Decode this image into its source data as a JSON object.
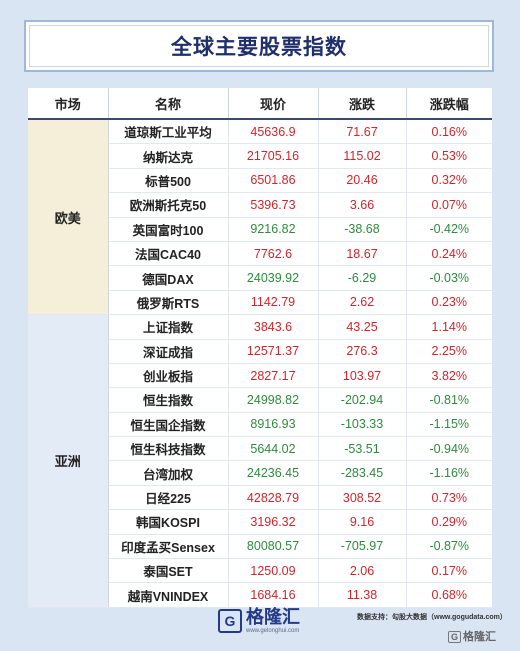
{
  "title": "全球主要股票指数",
  "headers": [
    "市场",
    "名称",
    "现价",
    "涨跌",
    "涨跌幅"
  ],
  "regions": [
    {
      "name": "欧美",
      "rows": [
        {
          "name": "道琼斯工业平均",
          "price": "45636.9",
          "change": "71.67",
          "pct": "0.16%",
          "dir": "pos"
        },
        {
          "name": "纳斯达克",
          "price": "21705.16",
          "change": "115.02",
          "pct": "0.53%",
          "dir": "pos"
        },
        {
          "name": "标普500",
          "price": "6501.86",
          "change": "20.46",
          "pct": "0.32%",
          "dir": "pos"
        },
        {
          "name": "欧洲斯托克50",
          "price": "5396.73",
          "change": "3.66",
          "pct": "0.07%",
          "dir": "pos"
        },
        {
          "name": "英国富时100",
          "price": "9216.82",
          "change": "-38.68",
          "pct": "-0.42%",
          "dir": "neg"
        },
        {
          "name": "法国CAC40",
          "price": "7762.6",
          "change": "18.67",
          "pct": "0.24%",
          "dir": "pos"
        },
        {
          "name": "德国DAX",
          "price": "24039.92",
          "change": "-6.29",
          "pct": "-0.03%",
          "dir": "neg"
        },
        {
          "name": "俄罗斯RTS",
          "price": "1142.79",
          "change": "2.62",
          "pct": "0.23%",
          "dir": "pos"
        }
      ]
    },
    {
      "name": "亚洲",
      "rows": [
        {
          "name": "上证指数",
          "price": "3843.6",
          "change": "43.25",
          "pct": "1.14%",
          "dir": "pos"
        },
        {
          "name": "深证成指",
          "price": "12571.37",
          "change": "276.3",
          "pct": "2.25%",
          "dir": "pos"
        },
        {
          "name": "创业板指",
          "price": "2827.17",
          "change": "103.97",
          "pct": "3.82%",
          "dir": "pos"
        },
        {
          "name": "恒生指数",
          "price": "24998.82",
          "change": "-202.94",
          "pct": "-0.81%",
          "dir": "neg"
        },
        {
          "name": "恒生国企指数",
          "price": "8916.93",
          "change": "-103.33",
          "pct": "-1.15%",
          "dir": "neg"
        },
        {
          "name": "恒生科技指数",
          "price": "5644.02",
          "change": "-53.51",
          "pct": "-0.94%",
          "dir": "neg"
        },
        {
          "name": "台湾加权",
          "price": "24236.45",
          "change": "-283.45",
          "pct": "-1.16%",
          "dir": "neg"
        },
        {
          "name": "日经225",
          "price": "42828.79",
          "change": "308.52",
          "pct": "0.73%",
          "dir": "pos"
        },
        {
          "name": "韩国KOSPI",
          "price": "3196.32",
          "change": "9.16",
          "pct": "0.29%",
          "dir": "pos"
        },
        {
          "name": "印度孟买Sensex",
          "price": "80080.57",
          "change": "-705.97",
          "pct": "-0.87%",
          "dir": "neg"
        },
        {
          "name": "泰国SET",
          "price": "1250.09",
          "change": "2.06",
          "pct": "0.17%",
          "dir": "pos"
        },
        {
          "name": "越南VNINDEX",
          "price": "1684.16",
          "change": "11.38",
          "pct": "0.68%",
          "dir": "pos"
        }
      ]
    }
  ],
  "footer": {
    "logo_mark": "G",
    "logo_name": "格隆汇",
    "logo_url": "www.gelonghui.com",
    "source": "数据支持：勾股大数据（www.gogudata.com）",
    "watermark_box": "G",
    "watermark_text": "格隆汇"
  },
  "colors": {
    "up": "#d0252b",
    "down": "#2e8b3d",
    "title": "#1f2f6b"
  }
}
